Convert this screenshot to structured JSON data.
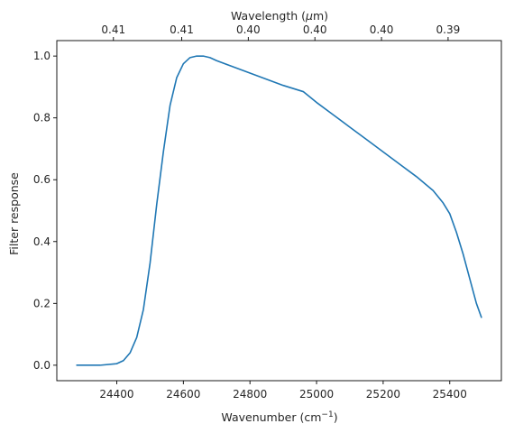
{
  "chart_data": {
    "type": "line",
    "xlabel": "Wavenumber (cm",
    "xlabel_superscript": "−1",
    "xlabel_suffix": ")",
    "ylabel": "Filter response",
    "top_xlabel_prefix": "Wavelength (",
    "top_xlabel_symbol": "μ",
    "top_xlabel_suffix": "m)",
    "xlim": [
      24220,
      25555
    ],
    "ylim": [
      -0.05,
      1.05
    ],
    "xticks": [
      24400,
      24600,
      24800,
      25000,
      25200,
      25400
    ],
    "yticks": [
      0.0,
      0.2,
      0.4,
      0.6,
      0.8,
      1.0
    ],
    "ytick_labels": [
      "0.0",
      "0.2",
      "0.4",
      "0.6",
      "0.8",
      "1.0"
    ],
    "top_xticks_wavenumber": [
      24390,
      24595,
      24795,
      24995,
      25195,
      25395
    ],
    "top_xtick_labels": [
      "0.41",
      "0.41",
      "0.40",
      "0.40",
      "0.40",
      "0.39"
    ],
    "line_color": "#1f77b4",
    "grid": false,
    "series": [
      {
        "x": [
          24280,
          24350,
          24400,
          24420,
          24440,
          24460,
          24480,
          24500,
          24520,
          24540,
          24560,
          24580,
          24600,
          24620,
          24640,
          24660,
          24680,
          24700,
          24750,
          24800,
          24850,
          24900,
          24960,
          25000,
          25050,
          25100,
          25150,
          25200,
          25250,
          25300,
          25350,
          25380,
          25400,
          25420,
          25440,
          25460,
          25480,
          25495
        ],
        "y": [
          0.0,
          0.0,
          0.005,
          0.015,
          0.04,
          0.09,
          0.18,
          0.33,
          0.52,
          0.69,
          0.84,
          0.93,
          0.975,
          0.995,
          1.0,
          1.0,
          0.995,
          0.985,
          0.965,
          0.945,
          0.925,
          0.905,
          0.885,
          0.85,
          0.81,
          0.77,
          0.73,
          0.69,
          0.65,
          0.61,
          0.565,
          0.525,
          0.49,
          0.43,
          0.36,
          0.28,
          0.2,
          0.155
        ]
      }
    ]
  }
}
